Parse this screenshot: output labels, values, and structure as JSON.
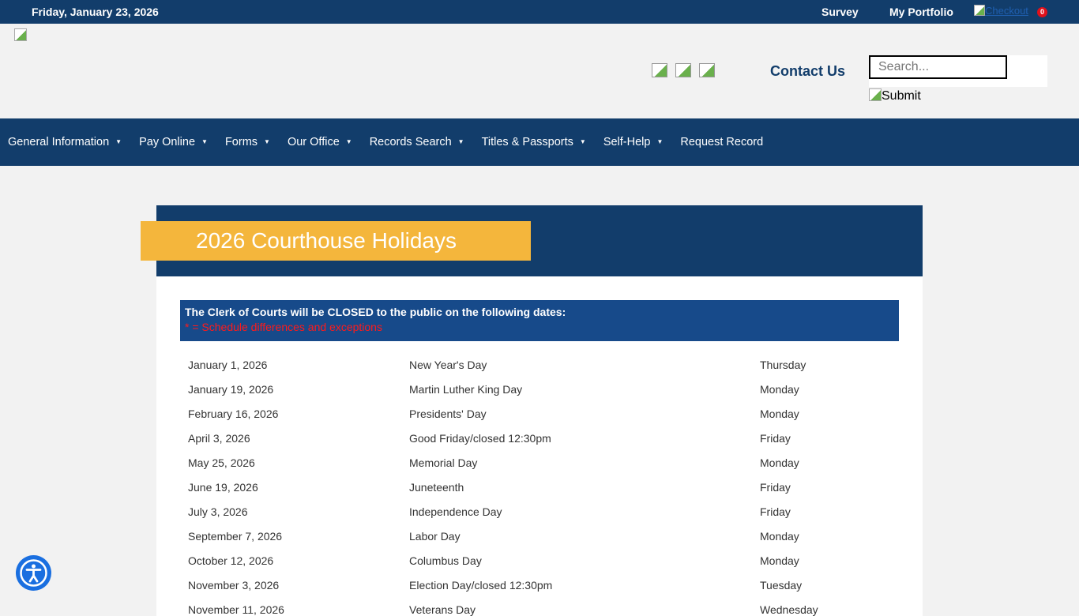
{
  "topbar": {
    "date": "Friday, January 23, 2026",
    "survey": "Survey",
    "portfolio": "My Portfolio",
    "checkout": "Checkout",
    "cart_count": "0"
  },
  "header": {
    "contact": "Contact Us",
    "search_placeholder": "Search...",
    "submit": "Submit"
  },
  "nav": [
    "General Information",
    "Pay Online",
    "Forms",
    "Our Office",
    "Records Search",
    "Titles & Passports",
    "Self-Help",
    "Request Record"
  ],
  "page": {
    "title": "2026 Courthouse Holidays",
    "notice": "The Clerk of Courts will be CLOSED to the public on the following dates:",
    "legend": "* = Schedule differences and exceptions",
    "holidays": [
      [
        "January 1, 2026",
        "New Year's Day",
        "Thursday"
      ],
      [
        "January 19, 2026",
        "Martin Luther King Day",
        "Monday"
      ],
      [
        "February 16, 2026",
        "Presidents' Day",
        "Monday"
      ],
      [
        "April 3, 2026",
        "Good Friday/closed 12:30pm",
        "Friday"
      ],
      [
        "May 25, 2026",
        "Memorial Day",
        "Monday"
      ],
      [
        "June 19, 2026",
        "Juneteenth",
        "Friday"
      ],
      [
        "July 3, 2026",
        "Independence Day",
        "Friday"
      ],
      [
        "September 7, 2026",
        "Labor Day",
        "Monday"
      ],
      [
        "October 12, 2026",
        "Columbus Day",
        "Monday"
      ],
      [
        "November 3, 2026",
        "Election Day/closed 12:30pm",
        "Tuesday"
      ],
      [
        "November 11, 2026",
        "Veterans Day",
        "Wednesday"
      ]
    ]
  },
  "colors": {
    "navy": "#123d6b",
    "gold": "#f4b63c",
    "notice": "#174a8a",
    "red": "#ff1a1a"
  }
}
